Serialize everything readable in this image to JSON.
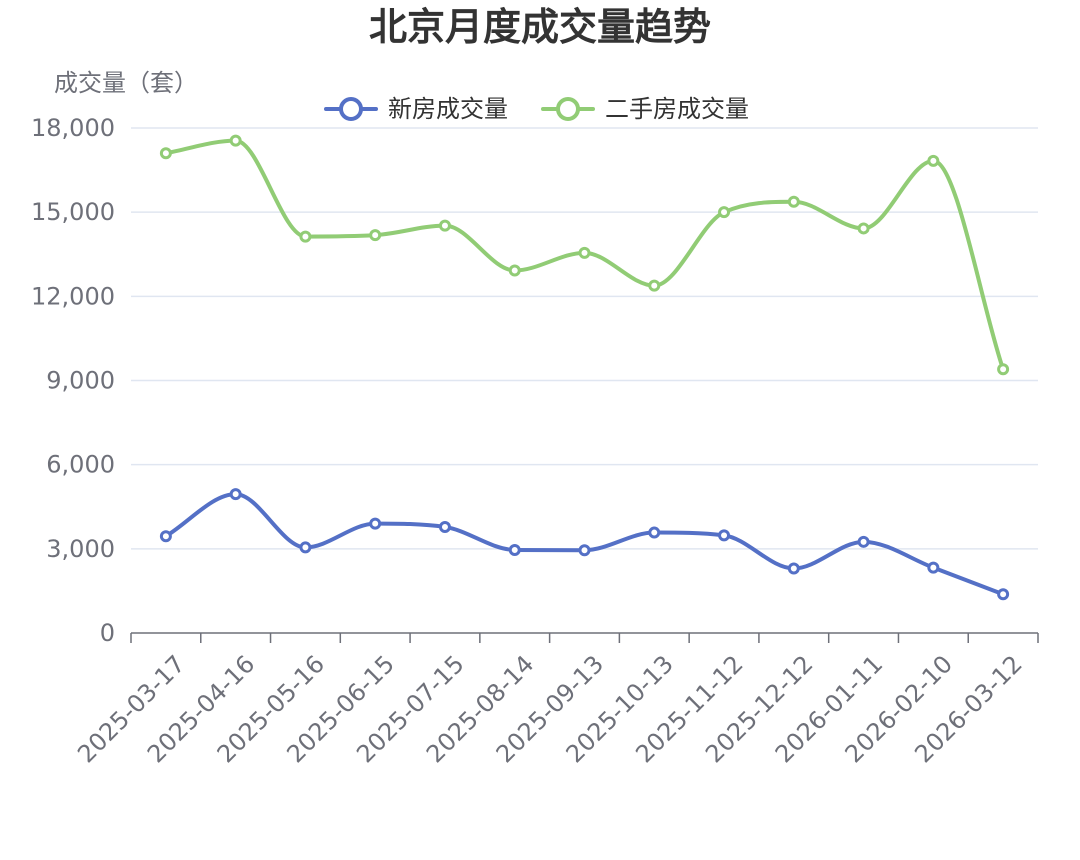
{
  "chart_data": {
    "type": "line",
    "title": "北京月度成交量趋势",
    "ylabel": "成交量（套）",
    "xlabel": "",
    "categories": [
      "2025-03-17",
      "2025-04-16",
      "2025-05-16",
      "2025-06-15",
      "2025-07-15",
      "2025-08-14",
      "2025-09-13",
      "2025-10-13",
      "2025-11-12",
      "2025-12-12",
      "2026-01-11",
      "2026-02-10",
      "2026-03-12"
    ],
    "series": [
      {
        "name": "新房成交量",
        "color": "#5470c6",
        "values": [
          3450,
          4950,
          3050,
          3900,
          3780,
          2960,
          2950,
          3580,
          3480,
          2300,
          3250,
          2330,
          1380
        ]
      },
      {
        "name": "二手房成交量",
        "color": "#91cc75",
        "values": [
          17100,
          17550,
          14130,
          14180,
          14520,
          12920,
          13550,
          12380,
          15000,
          15370,
          14420,
          16830,
          9400
        ]
      }
    ],
    "ylim": [
      0,
      18000
    ],
    "yticks": [
      0,
      3000,
      6000,
      9000,
      12000,
      15000,
      18000
    ],
    "ytick_labels": [
      "0",
      "3,000",
      "6,000",
      "9,000",
      "12,000",
      "15,000",
      "18,000"
    ],
    "grid": true,
    "smooth": true,
    "legend_position": "top-center"
  }
}
